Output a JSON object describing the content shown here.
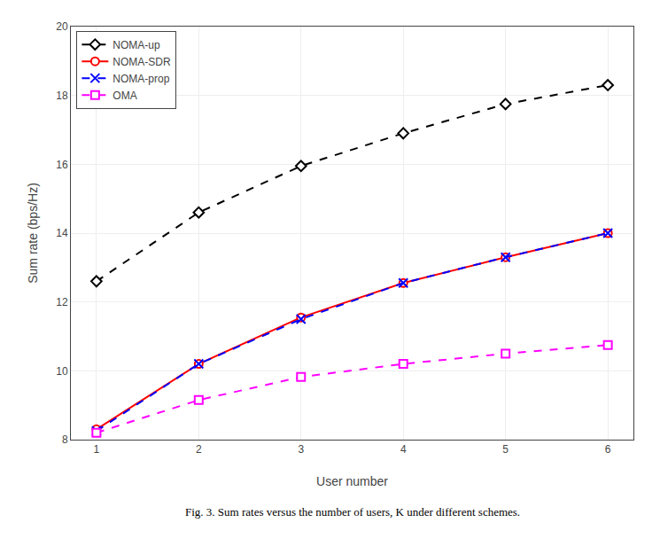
{
  "chart_data": {
    "type": "line",
    "x": [
      1,
      2,
      3,
      4,
      5,
      6
    ],
    "series": [
      {
        "name": "NOMA-up",
        "color": "#000000",
        "marker": "diamond",
        "line_style": "dashed",
        "values": [
          12.6,
          14.6,
          15.95,
          16.9,
          17.75,
          18.3
        ]
      },
      {
        "name": "NOMA-SDR",
        "color": "#ff0000",
        "marker": "circle",
        "line_style": "solid",
        "values": [
          8.3,
          10.2,
          11.55,
          12.55,
          13.3,
          14.0
        ]
      },
      {
        "name": "NOMA-prop",
        "color": "#0000ff",
        "marker": "x",
        "line_style": "dashed",
        "values": [
          8.25,
          10.2,
          11.5,
          12.55,
          13.3,
          14.0
        ]
      },
      {
        "name": "OMA",
        "color": "#ff00ff",
        "marker": "square",
        "line_style": "dashed",
        "values": [
          8.2,
          9.15,
          9.82,
          10.2,
          10.5,
          10.75
        ]
      }
    ],
    "x_label": "User number",
    "y_label": "Sum rate (bps/Hz)",
    "xlim": [
      0.75,
      6.25
    ],
    "ylim": [
      8,
      20
    ],
    "xticks": [
      1,
      2,
      3,
      4,
      5,
      6
    ],
    "yticks": [
      8,
      10,
      12,
      14,
      16,
      18,
      20
    ],
    "grid": true,
    "legend": "upper left",
    "annotations": [
      "Fig. 3. Sum rates versus the number of users, K under different schemes."
    ]
  }
}
